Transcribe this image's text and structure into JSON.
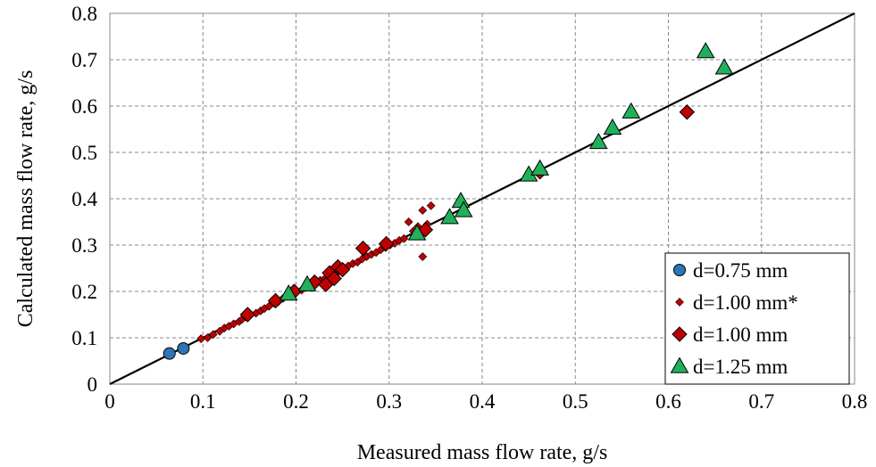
{
  "chart_data": {
    "type": "scatter",
    "title": "",
    "xlabel": "Measured mass flow rate, g/s",
    "ylabel": "Calculated mass flow rate, g/s",
    "xlim": [
      0,
      0.8
    ],
    "ylim": [
      0,
      0.8
    ],
    "x_ticks": [
      "0",
      "0.1",
      "0.2",
      "0.3",
      "0.4",
      "0.5",
      "0.6",
      "0.7",
      "0.8"
    ],
    "y_ticks": [
      "0",
      "0.1",
      "0.2",
      "0.3",
      "0.4",
      "0.5",
      "0.6",
      "0.7",
      "0.8"
    ],
    "grid": true,
    "legend_position": "bottom-right",
    "reference_line": {
      "x": [
        0,
        0.8
      ],
      "y": [
        0,
        0.8
      ]
    },
    "series": [
      {
        "name": "d=0.75 mm",
        "marker": "circle",
        "color": "#2e75b6",
        "points": [
          [
            0.064,
            0.066
          ],
          [
            0.079,
            0.077
          ]
        ]
      },
      {
        "name": "d=1.00 mm*",
        "marker": "small-diamond",
        "color": "#c00000",
        "points": [
          [
            0.098,
            0.098
          ],
          [
            0.105,
            0.1
          ],
          [
            0.111,
            0.107
          ],
          [
            0.118,
            0.114
          ],
          [
            0.123,
            0.121
          ],
          [
            0.128,
            0.125
          ],
          [
            0.133,
            0.13
          ],
          [
            0.139,
            0.135
          ],
          [
            0.142,
            0.14
          ],
          [
            0.146,
            0.145
          ],
          [
            0.151,
            0.15
          ],
          [
            0.157,
            0.153
          ],
          [
            0.162,
            0.158
          ],
          [
            0.166,
            0.163
          ],
          [
            0.171,
            0.168
          ],
          [
            0.176,
            0.175
          ],
          [
            0.181,
            0.178
          ],
          [
            0.186,
            0.185
          ],
          [
            0.191,
            0.19
          ],
          [
            0.196,
            0.194
          ],
          [
            0.201,
            0.2
          ],
          [
            0.206,
            0.203
          ],
          [
            0.211,
            0.21
          ],
          [
            0.216,
            0.213
          ],
          [
            0.221,
            0.218
          ],
          [
            0.226,
            0.224
          ],
          [
            0.231,
            0.228
          ],
          [
            0.236,
            0.235
          ],
          [
            0.24,
            0.24
          ],
          [
            0.246,
            0.243
          ],
          [
            0.251,
            0.25
          ],
          [
            0.256,
            0.255
          ],
          [
            0.261,
            0.26
          ],
          [
            0.266,
            0.263
          ],
          [
            0.271,
            0.27
          ],
          [
            0.276,
            0.275
          ],
          [
            0.281,
            0.28
          ],
          [
            0.286,
            0.284
          ],
          [
            0.291,
            0.29
          ],
          [
            0.296,
            0.295
          ],
          [
            0.301,
            0.3
          ],
          [
            0.306,
            0.304
          ],
          [
            0.311,
            0.31
          ],
          [
            0.316,
            0.314
          ],
          [
            0.321,
            0.35
          ],
          [
            0.326,
            0.33
          ],
          [
            0.331,
            0.34
          ],
          [
            0.336,
            0.375
          ],
          [
            0.341,
            0.345
          ],
          [
            0.345,
            0.385
          ],
          [
            0.336,
            0.275
          ]
        ]
      },
      {
        "name": "d=1.00 mm",
        "marker": "diamond",
        "color": "#c00000",
        "points": [
          [
            0.148,
            0.15
          ],
          [
            0.178,
            0.18
          ],
          [
            0.198,
            0.2
          ],
          [
            0.22,
            0.22
          ],
          [
            0.232,
            0.215
          ],
          [
            0.236,
            0.24
          ],
          [
            0.241,
            0.228
          ],
          [
            0.245,
            0.253
          ],
          [
            0.25,
            0.247
          ],
          [
            0.272,
            0.293
          ],
          [
            0.297,
            0.303
          ],
          [
            0.339,
            0.333
          ],
          [
            0.462,
            0.458
          ],
          [
            0.62,
            0.587
          ]
        ]
      },
      {
        "name": "d=1.25 mm",
        "marker": "triangle",
        "color": "#21b05a",
        "points": [
          [
            0.192,
            0.195
          ],
          [
            0.212,
            0.215
          ],
          [
            0.33,
            0.325
          ],
          [
            0.365,
            0.36
          ],
          [
            0.377,
            0.395
          ],
          [
            0.38,
            0.375
          ],
          [
            0.45,
            0.452
          ],
          [
            0.462,
            0.465
          ],
          [
            0.525,
            0.522
          ],
          [
            0.54,
            0.553
          ],
          [
            0.56,
            0.588
          ],
          [
            0.64,
            0.718
          ],
          [
            0.66,
            0.683
          ]
        ]
      }
    ]
  }
}
